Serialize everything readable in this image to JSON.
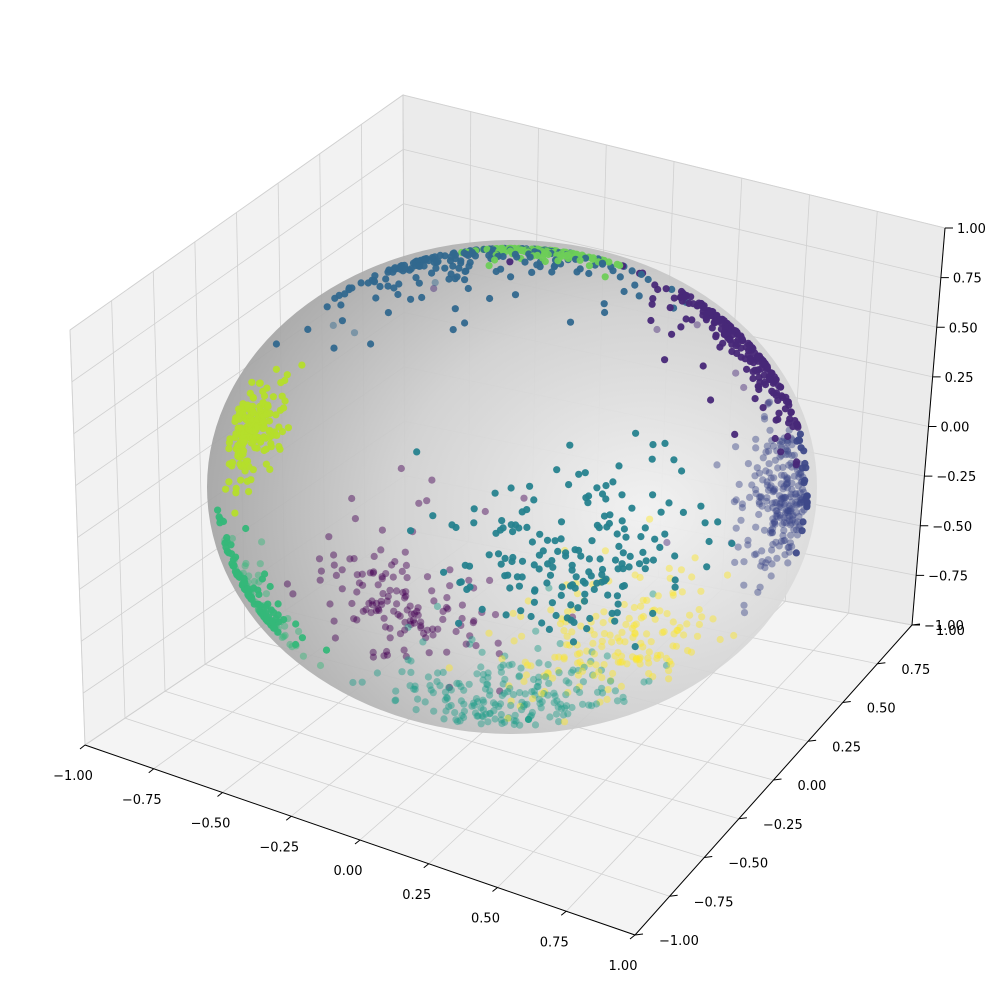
{
  "chart_data": {
    "type": "scatter",
    "projection": "3d",
    "title": "",
    "xlabel": "",
    "ylabel": "",
    "zlabel": "",
    "xlim": [
      -1.0,
      1.0
    ],
    "ylim": [
      -1.0,
      1.0
    ],
    "zlim": [
      -1.0,
      1.0
    ],
    "grid": true,
    "legend": "none",
    "surface": {
      "shape": "unit-sphere",
      "color": "#a9a9a9"
    },
    "x_ticks": [
      "−1.00",
      "−0.75",
      "−0.50",
      "−0.25",
      "0.00",
      "0.25",
      "0.50",
      "0.75",
      "1.00"
    ],
    "y_ticks": [
      "−1.00",
      "−0.75",
      "−0.50",
      "−0.25",
      "0.00",
      "0.25",
      "0.50",
      "0.75",
      "1.00"
    ],
    "z_ticks": [
      "−1.00",
      "−0.75",
      "−0.50",
      "−0.25",
      "0.00",
      "0.25",
      "0.50",
      "0.75",
      "1.00"
    ],
    "colormap": "viridis",
    "clusters": [
      {
        "color": "#440154",
        "center": [
          0.1,
          -0.95,
          -0.2
        ],
        "spread": 0.18,
        "count": 140
      },
      {
        "color": "#482878",
        "center": [
          0.55,
          0.65,
          0.55
        ],
        "spread": 0.22,
        "count": 220
      },
      {
        "color": "#3e4989",
        "center": [
          0.95,
          0.15,
          0.05
        ],
        "spread": 0.15,
        "count": 260
      },
      {
        "color": "#31688e",
        "center": [
          -0.35,
          0.3,
          0.85
        ],
        "spread": 0.25,
        "count": 200
      },
      {
        "color": "#26828e",
        "center": [
          -0.2,
          0.8,
          -0.55
        ],
        "spread": 0.22,
        "count": 180
      },
      {
        "color": "#1f9e89",
        "center": [
          0.35,
          -0.6,
          -0.7
        ],
        "spread": 0.2,
        "count": 200
      },
      {
        "color": "#35b779",
        "center": [
          -0.7,
          -0.55,
          -0.45
        ],
        "spread": 0.16,
        "count": 170
      },
      {
        "color": "#6ece58",
        "center": [
          -0.1,
          0.35,
          0.92
        ],
        "spread": 0.12,
        "count": 120
      },
      {
        "color": "#b5de2b",
        "center": [
          -0.95,
          -0.05,
          0.1
        ],
        "spread": 0.1,
        "count": 180
      },
      {
        "color": "#fde725",
        "center": [
          0.7,
          -0.55,
          -0.45
        ],
        "spread": 0.2,
        "count": 180
      }
    ]
  }
}
